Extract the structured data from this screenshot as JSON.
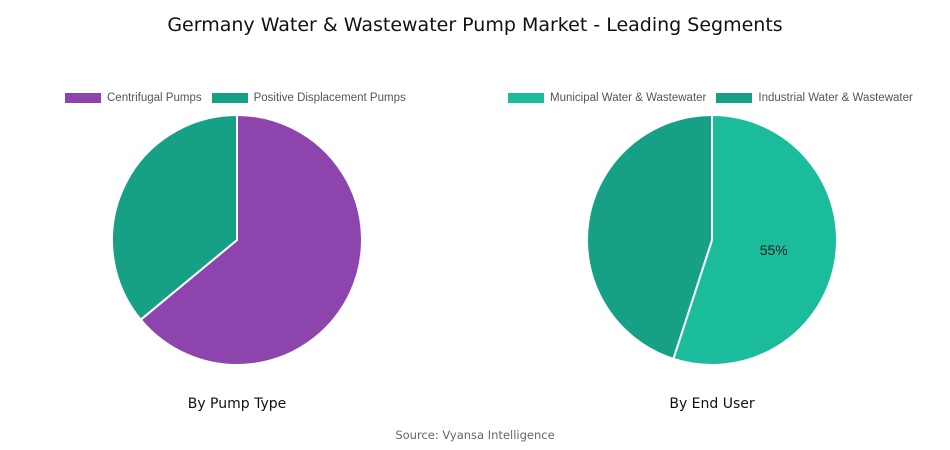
{
  "title": "Germany Water & Wastewater Pump Market - Leading Segments",
  "source": "Source: Vyansa Intelligence",
  "chart_data": [
    {
      "type": "pie",
      "caption": "By Pump Type",
      "categories": [
        "Centrifugal Pumps",
        "Positive Displacement Pumps"
      ],
      "values": [
        64,
        36
      ],
      "colors": [
        "#8e44ad",
        "#16a085"
      ],
      "data_labels": [
        "",
        ""
      ],
      "legend": "top"
    },
    {
      "type": "pie",
      "caption": "By End User",
      "categories": [
        "Municipal Water & Wastewater",
        "Industrial Water & Wastewater"
      ],
      "values": [
        55,
        45
      ],
      "colors": [
        "#1abc9c",
        "#16a085"
      ],
      "data_labels": [
        "55%",
        ""
      ],
      "legend": "top"
    }
  ]
}
